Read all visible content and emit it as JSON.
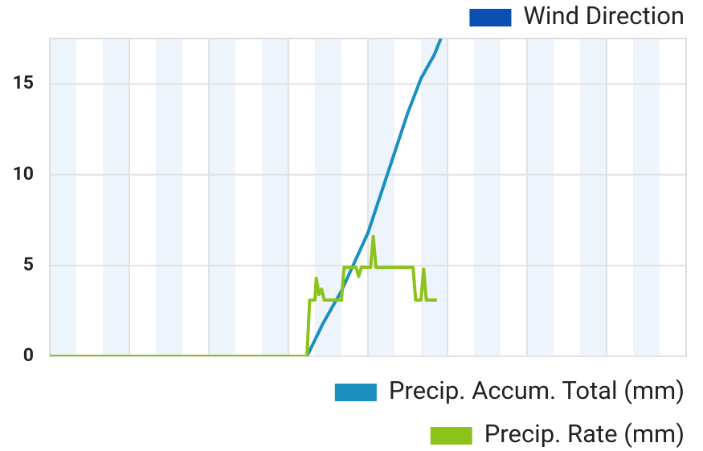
{
  "chart_data": {
    "type": "line",
    "xlim": [
      0,
      24
    ],
    "ylim": [
      0,
      17.5
    ],
    "yticks": [
      0,
      5,
      10,
      15
    ],
    "grid": true,
    "series": [
      {
        "name": "Wind Direction",
        "color": "#0b4fb3",
        "x": [],
        "values": []
      },
      {
        "name": "Precip. Accum. Total (mm)",
        "color": "#1b90c0",
        "x": [
          0,
          9.7,
          10.3,
          11,
          11.5,
          12,
          12.5,
          13,
          13.5,
          14,
          14.5,
          14.75
        ],
        "values": [
          0,
          0,
          1.8,
          3.6,
          5.2,
          6.8,
          9,
          11.2,
          13.4,
          15.3,
          16.6,
          17.5
        ]
      },
      {
        "name": "Precip. Rate (mm)",
        "color": "#8dc21c",
        "x": [
          0,
          9.7,
          9.8,
          10.0,
          10.05,
          10.15,
          10.25,
          10.35,
          11.0,
          11.1,
          11.55,
          11.65,
          11.75,
          12.1,
          12.2,
          12.3,
          13.7,
          13.8,
          14.0,
          14.1,
          14.2,
          14.6
        ],
        "values": [
          0,
          0,
          3.1,
          3.1,
          4.3,
          3.4,
          3.7,
          3.1,
          3.1,
          4.9,
          4.9,
          4.4,
          4.9,
          4.9,
          6.6,
          4.9,
          4.9,
          3.1,
          3.1,
          4.8,
          3.1,
          3.1
        ]
      }
    ]
  }
}
